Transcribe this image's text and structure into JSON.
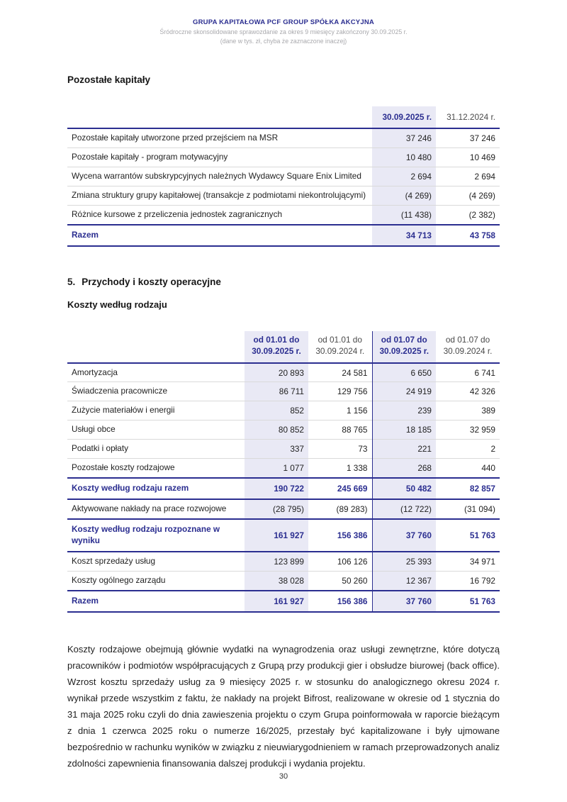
{
  "colors": {
    "accent_navy": "#2b2e90",
    "highlight_lavender": "#e9e9f5"
  },
  "header": {
    "company": "GRUPA KAPITAŁOWA PCF GROUP SPÓŁKA AKCYJNA",
    "subtitle": "Śródroczne skonsolidowane sprawozdanie za okres 9 miesięcy zakończony 30.09.2025 r.",
    "note": "(dane w tys. zł, chyba że zaznaczone inaczej)"
  },
  "section_other_capitals": {
    "title": "Pozostałe kapitały",
    "table": {
      "col_headers": [
        "30.09.2025 r.",
        "31.12.2024 r."
      ],
      "rows": [
        {
          "label": "Pozostałe kapitały utworzone przed przejściem na MSR",
          "values": [
            "37 246",
            "37 246"
          ]
        },
        {
          "label": "Pozostałe kapitały - program motywacyjny",
          "values": [
            "10 480",
            "10 469"
          ]
        },
        {
          "label": "Wycena warrantów subskrypcyjnych należnych Wydawcy Square Enix Limited",
          "values": [
            "2 694",
            "2 694"
          ]
        },
        {
          "label": "Zmiana struktury grupy kapitałowej (transakcje z podmiotami niekontrolującymi)",
          "values": [
            "(4 269)",
            "(4 269)"
          ]
        },
        {
          "label": "Różnice kursowe z przeliczenia jednostek zagranicznych",
          "values": [
            "(11 438)",
            "(2 382)"
          ]
        }
      ],
      "total": {
        "label": "Razem",
        "values": [
          "34 713",
          "43 758"
        ]
      }
    }
  },
  "section_costs": {
    "number": "5.",
    "title": "Przychody i koszty operacyjne",
    "subtitle": "Koszty według rodzaju",
    "table": {
      "col_headers": [
        "od 01.01 do\n30.09.2025 r.",
        "od 01.01 do\n30.09.2024 r.",
        "od 01.07 do\n30.09.2025 r.",
        "od 01.07 do\n30.09.2024 r."
      ],
      "rows": [
        {
          "label": "Amortyzacja",
          "values": [
            "20 893",
            "24 581",
            "6 650",
            "6 741"
          ]
        },
        {
          "label": "Świadczenia pracownicze",
          "values": [
            "86 711",
            "129 756",
            "24 919",
            "42 326"
          ]
        },
        {
          "label": "Zużycie materiałów i energii",
          "values": [
            "852",
            "1 156",
            "239",
            "389"
          ]
        },
        {
          "label": "Usługi obce",
          "values": [
            "80 852",
            "88 765",
            "18 185",
            "32 959"
          ]
        },
        {
          "label": "Podatki i opłaty",
          "values": [
            "337",
            "73",
            "221",
            "2"
          ]
        },
        {
          "label": "Pozostałe koszty rodzajowe",
          "values": [
            "1 077",
            "1 338",
            "268",
            "440"
          ]
        },
        {
          "label": "Koszty według rodzaju razem",
          "values": [
            "190 722",
            "245 669",
            "50 482",
            "82 857"
          ]
        },
        {
          "label": "Aktywowane nakłady na prace rozwojowe",
          "values": [
            "(28 795)",
            "(89 283)",
            "(12 722)",
            "(31 094)"
          ]
        },
        {
          "label": "Koszty według rodzaju rozpoznane w wyniku",
          "values": [
            "161 927",
            "156 386",
            "37 760",
            "51 763"
          ]
        },
        {
          "label": "Koszt sprzedaży usług",
          "values": [
            "123 899",
            "106 126",
            "25 393",
            "34 971"
          ]
        },
        {
          "label": "Koszty ogólnego zarządu",
          "values": [
            "38 028",
            "50 260",
            "12 367",
            "16 792"
          ]
        },
        {
          "label": "Razem",
          "values": [
            "161 927",
            "156 386",
            "37 760",
            "51 763"
          ]
        }
      ]
    }
  },
  "paragraph": "Koszty rodzajowe obejmują głównie wydatki na wynagrodzenia oraz usługi zewnętrzne, które dotyczą pracowników i podmiotów współpracujących z Grupą przy produkcji gier i obsłudze biurowej (back office). Wzrost kosztu sprzedaży usług za 9 miesięcy 2025 r. w stosunku do analogicznego okresu 2024 r. wynikał przede wszystkim z faktu, że nakłady na projekt Bifrost, realizowane w okresie od 1 stycznia do 31 maja 2025 roku czyli do dnia zawieszenia projektu o czym Grupa poinformowała w raporcie bieżącym z dnia 1 czerwca 2025 roku o numerze 16/2025, przestały być kapitalizowane i były ujmowane bezpośrednio w rachunku wyników w związku z nieuwiarygodnieniem w ramach przeprowadzonych analiz zdolności zapewnienia finansowania dalszej produkcji i wydania projektu.",
  "page_number": "30"
}
